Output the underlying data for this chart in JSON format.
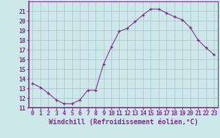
{
  "x": [
    0,
    1,
    2,
    3,
    4,
    5,
    6,
    7,
    8,
    9,
    10,
    11,
    12,
    13,
    14,
    15,
    16,
    17,
    18,
    19,
    20,
    21,
    22,
    23
  ],
  "y": [
    13.5,
    13.1,
    12.5,
    11.8,
    11.4,
    11.4,
    11.8,
    12.8,
    12.8,
    15.5,
    17.3,
    18.9,
    19.2,
    19.9,
    20.6,
    21.2,
    21.2,
    20.8,
    20.4,
    20.1,
    19.3,
    18.0,
    17.2,
    16.5
  ],
  "line_color": "#7b2d8b",
  "marker": "+",
  "marker_size": 3,
  "bg_color": "#cce8e8",
  "grid_color": "#aabccc",
  "xlabel": "Windchill (Refroidissement éolien,°C)",
  "ylim": [
    11,
    22
  ],
  "xlim": [
    -0.5,
    23.5
  ],
  "yticks": [
    11,
    12,
    13,
    14,
    15,
    16,
    17,
    18,
    19,
    20,
    21
  ],
  "xticks": [
    0,
    1,
    2,
    3,
    4,
    5,
    6,
    7,
    8,
    9,
    10,
    11,
    12,
    13,
    14,
    15,
    16,
    17,
    18,
    19,
    20,
    21,
    22,
    23
  ],
  "tick_color": "#7b2d8b",
  "label_color": "#7b2d8b",
  "font_size": 6.0,
  "xlabel_fontsize": 7.0
}
